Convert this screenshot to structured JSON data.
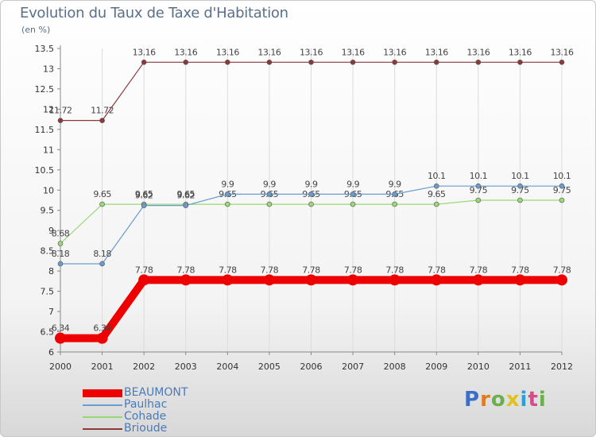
{
  "title": "Evolution du Taux de Taxe d'Habitation",
  "unit_label": "(en %)",
  "logo_text": "Proxiti",
  "logo_colors": [
    "#3a6fc4",
    "#e07b1f",
    "#6ab04c",
    "#e0c21f",
    "#2aa0d8",
    "#d94a8c",
    "#6ab04c"
  ],
  "chart_data": {
    "type": "line",
    "title": "Evolution du Taux de Taxe d'Habitation",
    "ylabel": "(en %)",
    "xlabel": "",
    "ylim": [
      6,
      13.5
    ],
    "yticks": [
      "6",
      "6.5",
      "7",
      "7.5",
      "8",
      "8.5",
      "9",
      "9.5",
      "10",
      "10.5",
      "11",
      "11.5",
      "12",
      "12.5",
      "13",
      "13.5"
    ],
    "x": [
      "2000",
      "2001",
      "2002",
      "2003",
      "2004",
      "2005",
      "2006",
      "2007",
      "2008",
      "2009",
      "2010",
      "2011",
      "2012"
    ],
    "series": [
      {
        "name": "BEAUMONT",
        "color": "#ee0000",
        "values": [
          6.34,
          6.34,
          7.78,
          7.78,
          7.78,
          7.78,
          7.78,
          7.78,
          7.78,
          7.78,
          7.78,
          7.78,
          7.78
        ],
        "labels": [
          "6.34",
          "6.34",
          "7.78",
          "7.78",
          "7.78",
          "7.78",
          "7.78",
          "7.78",
          "7.78",
          "7.78",
          "7.78",
          "7.78",
          "7.78"
        ]
      },
      {
        "name": "Paulhac",
        "color": "#6a9ccf",
        "values": [
          8.18,
          8.18,
          9.62,
          9.62,
          9.9,
          9.9,
          9.9,
          9.9,
          9.9,
          10.1,
          10.1,
          10.1,
          10.1
        ],
        "labels": [
          "8.18",
          "8.18",
          "9.62",
          "9.62",
          "9.9",
          "9.9",
          "9.9",
          "9.9",
          "9.9",
          "10.1",
          "10.1",
          "10.1",
          "10.1"
        ]
      },
      {
        "name": "Cohade",
        "color": "#99d877",
        "values": [
          8.68,
          9.65,
          9.65,
          9.65,
          9.65,
          9.65,
          9.65,
          9.65,
          9.65,
          9.65,
          9.75,
          9.75,
          9.75
        ],
        "labels": [
          "8.68",
          "9.65",
          "9.65",
          "9.65",
          "9.65",
          "9.65",
          "9.65",
          "9.65",
          "9.65",
          "9.65",
          "9.75",
          "9.75",
          "9.75"
        ]
      },
      {
        "name": "Brioude",
        "color": "#8b3a3a",
        "values": [
          11.72,
          11.72,
          13.16,
          13.16,
          13.16,
          13.16,
          13.16,
          13.16,
          13.16,
          13.16,
          13.16,
          13.16,
          13.16
        ],
        "labels": [
          "11.72",
          "11.72",
          "13.16",
          "13.16",
          "13.16",
          "13.16",
          "13.16",
          "13.16",
          "13.16",
          "13.16",
          "13.16",
          "13.16",
          "13.16"
        ]
      }
    ]
  }
}
